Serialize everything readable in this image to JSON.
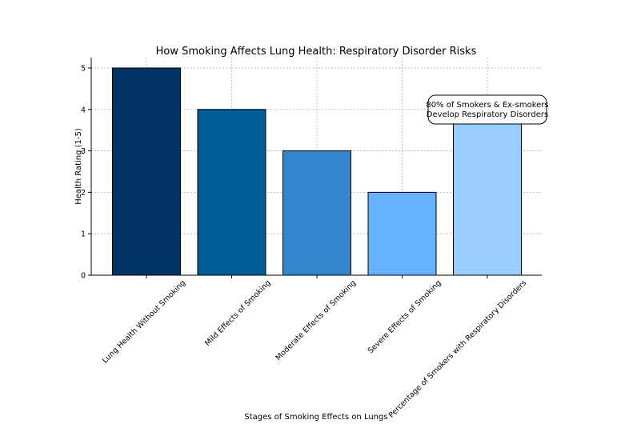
{
  "chart_data": {
    "type": "bar",
    "title": "How Smoking Affects Lung Health: Respiratory Disorder Risks",
    "xlabel": "Stages of Smoking Effects on Lungs",
    "ylabel": "Health Rating (1-5)",
    "ylim": [
      0,
      5.25
    ],
    "yticks": [
      0,
      1,
      2,
      3,
      4,
      5
    ],
    "grid": true,
    "categories": [
      "Lung Health Without Smoking",
      "Mild Effects of Smoking",
      "Moderate Effects of Smoking",
      "Severe Effects of Smoking",
      "Percentage of Smokers with Respiratory Disorders"
    ],
    "values": [
      5,
      4,
      3,
      2,
      4
    ],
    "colors": [
      "#003366",
      "#005b99",
      "#3385cc",
      "#66b2ff",
      "#99ccff"
    ],
    "annotation": {
      "category_index": 4,
      "lines": [
        "80% of Smokers & Ex-smokers",
        "Develop Respiratory Disorders"
      ]
    }
  }
}
